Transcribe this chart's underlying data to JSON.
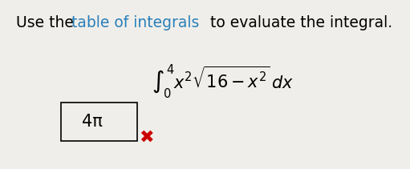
{
  "title_part1": "Use the ",
  "title_part2": "table of integrals",
  "title_part3": " to evaluate the integral.",
  "title_fontsize": 13.5,
  "title_color": "#2980b9",
  "integral_fontsize": 15,
  "answer_text": "4π",
  "answer_fontsize": 15,
  "cross_color": "#cc0000",
  "cross_fontsize": 16,
  "bg_color": "#f0eeea"
}
